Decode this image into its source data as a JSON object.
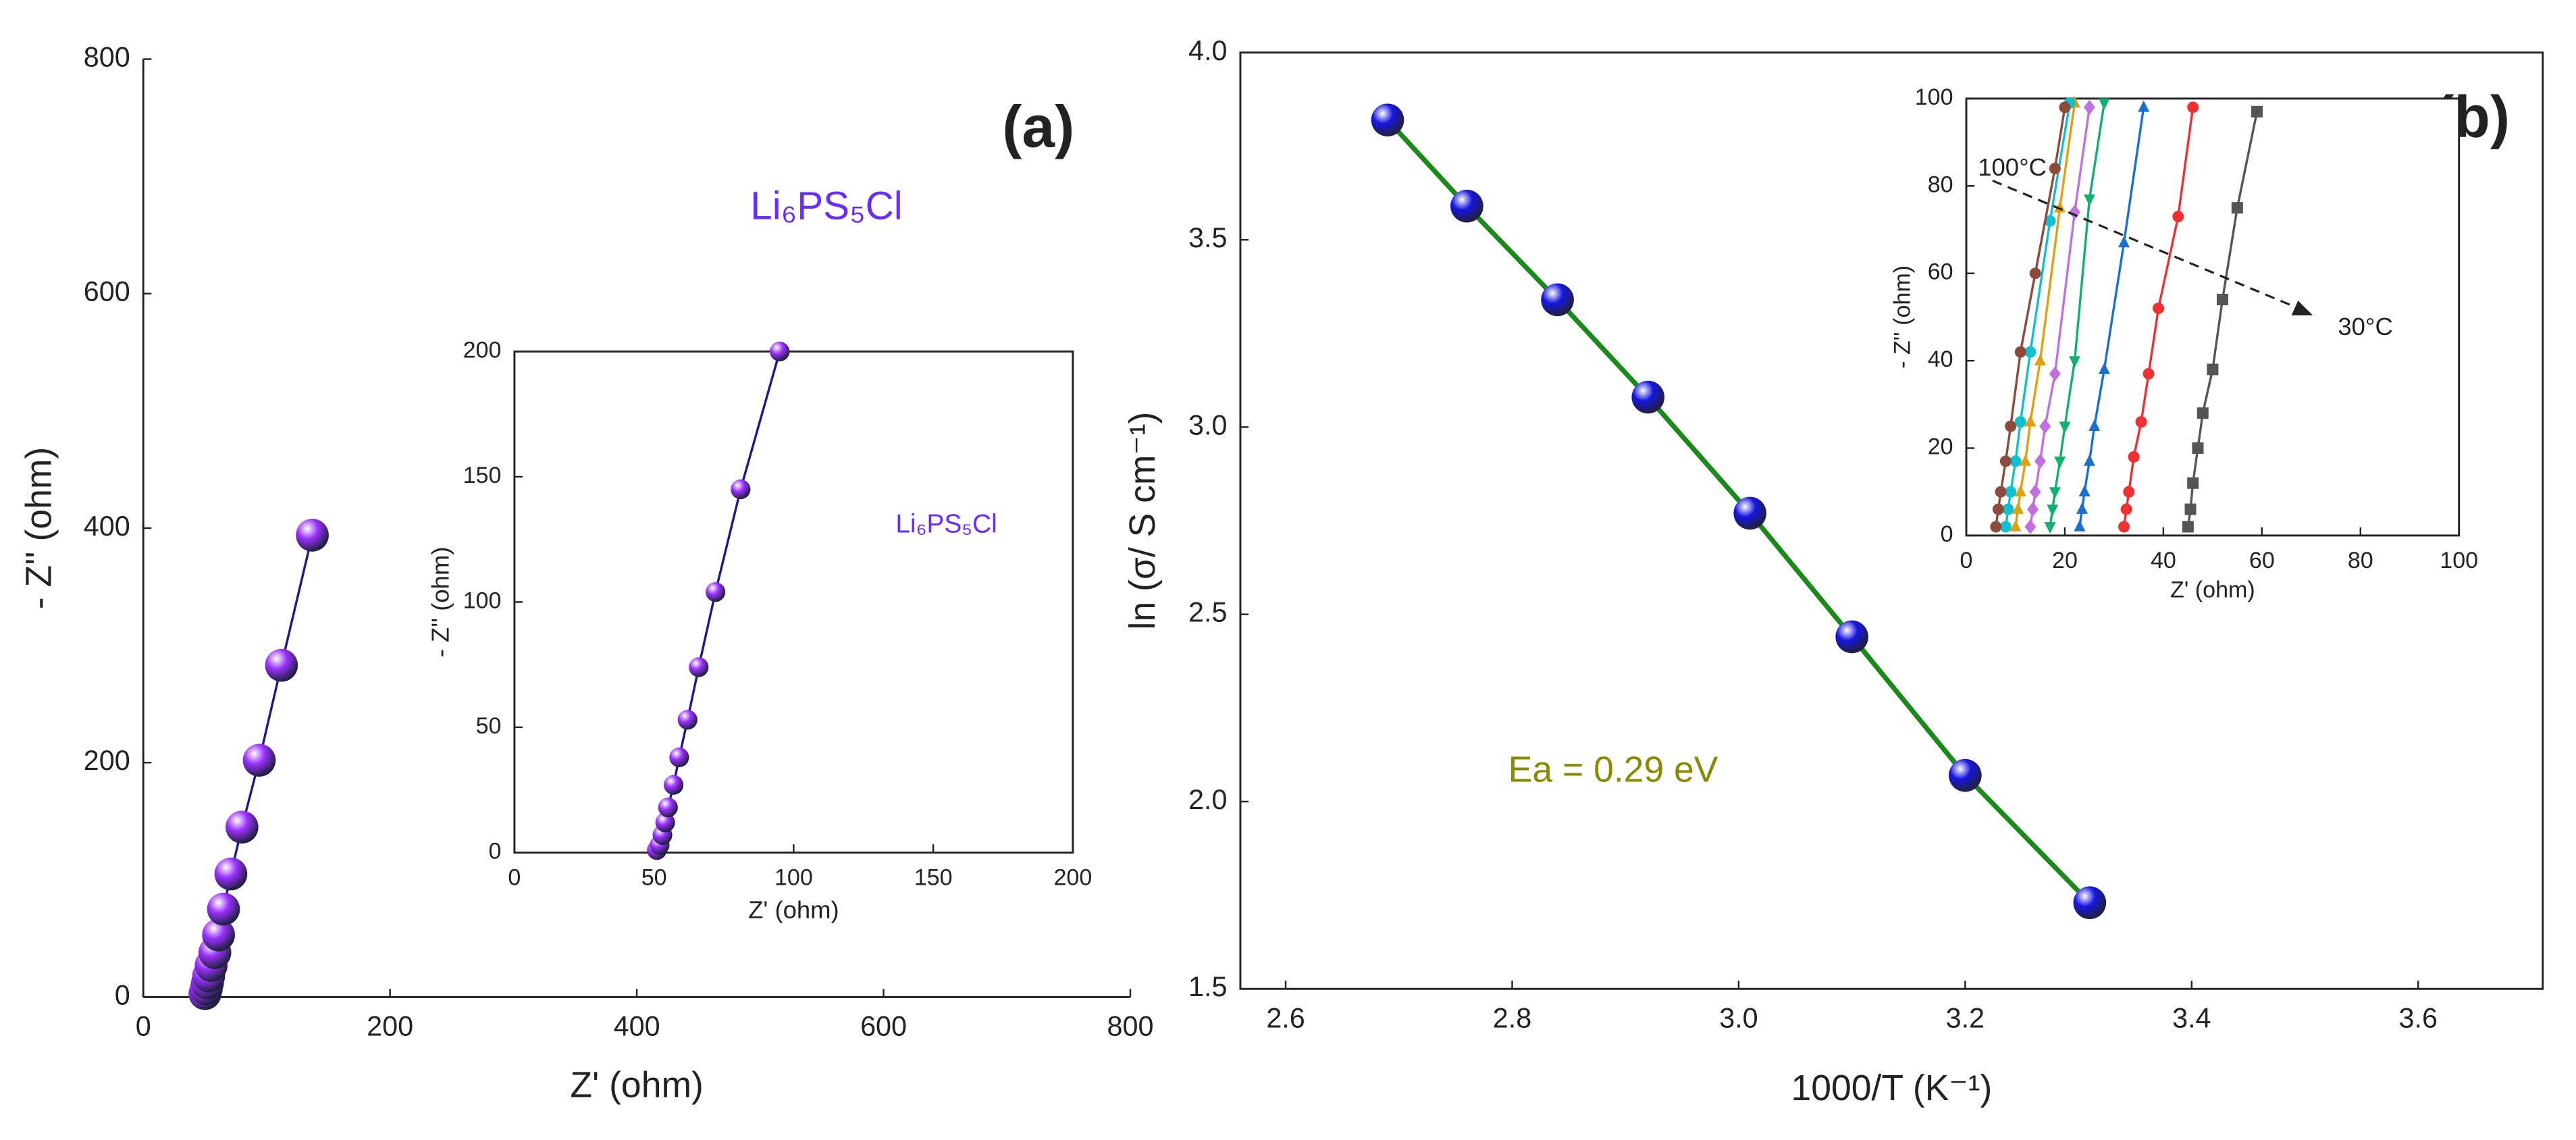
{
  "chart_data": [
    {
      "type": "scatter-line",
      "xlabel": "Z' (ohm)",
      "ylabel": "- Z'' (ohm)",
      "annotations": [
        "(a)",
        "Li₆PS₅Cl"
      ],
      "xlim": [
        0,
        800
      ],
      "ylim": [
        0,
        800
      ],
      "xticks": [
        0,
        200,
        400,
        600,
        800
      ],
      "yticks": [
        0,
        200,
        400,
        600,
        800
      ],
      "series": [
        {
          "color": "#9b30ff",
          "marker": "sphere",
          "x": [
            50,
            51,
            52,
            53,
            55,
            58,
            61,
            65,
            71,
            80,
            94,
            112,
            137
          ],
          "values": [
            3,
            7,
            12,
            18,
            27,
            38,
            53,
            75,
            105,
            145,
            202,
            283,
            394
          ]
        }
      ]
    },
    {
      "type": "scatter-line",
      "xlabel": "Z' (ohm)",
      "ylabel": "- Z'' (ohm)",
      "annotations": [
        "Li₆PS₅Cl"
      ],
      "xlim": [
        0,
        200
      ],
      "ylim": [
        0,
        200
      ],
      "xticks": [
        0,
        50,
        100,
        150,
        200
      ],
      "yticks": [
        0,
        50,
        100,
        150,
        200
      ],
      "series": [
        {
          "color": "#9b30ff",
          "marker": "sphere",
          "x": [
            51,
            52,
            53,
            54,
            55,
            57,
            59,
            62,
            66,
            72,
            81,
            95
          ],
          "values": [
            1,
            3,
            7,
            12,
            18,
            27,
            38,
            53,
            74,
            104,
            145,
            200
          ]
        }
      ]
    },
    {
      "type": "scatter-line",
      "xlabel": "1000/T (K⁻¹)",
      "ylabel": "ln (σ/ S cm⁻¹)",
      "annotations": [
        "(b)",
        "Ea = 0.29 eV"
      ],
      "xlim": [
        2.56,
        3.71
      ],
      "ylim": [
        1.5,
        4.0
      ],
      "xticks": [
        2.6,
        2.8,
        {
          "value": 3.0,
          "label": "3.0"
        },
        3.2,
        3.4,
        3.6
      ],
      "yticks": [
        1.5,
        {
          "value": 2.0,
          "label": "2.0"
        },
        2.5,
        {
          "value": 3.0,
          "label": "3.0"
        },
        3.5,
        {
          "value": 4.0,
          "label": "4.0"
        }
      ],
      "line_color": "#1a8a1a",
      "series": [
        {
          "color": "#1515e0",
          "marker": "sphere",
          "x": [
            2.69,
            2.76,
            2.84,
            2.92,
            3.01,
            3.1,
            3.2,
            3.31
          ],
          "values": [
            3.82,
            3.59,
            3.34,
            3.08,
            2.77,
            2.44,
            2.07,
            1.73
          ]
        }
      ]
    },
    {
      "type": "scatter-line",
      "xlabel": "Z' (ohm)",
      "ylabel": "- Z'' (ohm)",
      "annotations": [
        "100°C",
        "30°C"
      ],
      "xlim": [
        0,
        100
      ],
      "ylim": [
        0,
        100
      ],
      "xticks": [
        0,
        20,
        40,
        60,
        80,
        100
      ],
      "yticks": [
        0,
        20,
        40,
        60,
        80,
        100
      ],
      "series": [
        {
          "color": "#555555",
          "marker": "square",
          "x": [
            45,
            45.5,
            46,
            47,
            48,
            50,
            52,
            55,
            59
          ],
          "values": [
            2,
            6,
            12,
            20,
            28,
            38,
            54,
            75,
            97
          ]
        },
        {
          "color": "#f03030",
          "marker": "circle",
          "x": [
            32,
            32.5,
            33,
            34,
            35.5,
            37,
            39,
            43,
            46
          ],
          "values": [
            2,
            6,
            10,
            18,
            26,
            37,
            52,
            73,
            98
          ]
        },
        {
          "color": "#1a70d0",
          "marker": "triangle",
          "x": [
            23,
            23.5,
            24,
            25,
            26,
            28,
            32,
            36
          ],
          "values": [
            2,
            6,
            10,
            17,
            25,
            38,
            67,
            98
          ]
        },
        {
          "color": "#10b070",
          "marker": "tri-down",
          "x": [
            17,
            17.5,
            18,
            19,
            20,
            22,
            25,
            28
          ],
          "values": [
            2,
            6,
            10,
            17,
            25,
            40,
            77,
            99
          ]
        },
        {
          "color": "#c070e0",
          "marker": "diamond",
          "x": [
            13,
            13.5,
            14,
            15,
            16,
            18,
            22,
            25
          ],
          "values": [
            2,
            6,
            10,
            17,
            25,
            37,
            74,
            98
          ]
        },
        {
          "color": "#e0a010",
          "marker": "triangle",
          "x": [
            10,
            10.5,
            11,
            12,
            13,
            15,
            19,
            22
          ],
          "values": [
            2,
            6,
            10,
            17,
            26,
            40,
            75,
            99
          ]
        },
        {
          "color": "#10c0d0",
          "marker": "circle",
          "x": [
            8,
            8.5,
            9,
            10,
            11,
            13,
            17,
            21
          ],
          "values": [
            2,
            6,
            10,
            17,
            26,
            42,
            72,
            99
          ]
        },
        {
          "color": "#8b4a3a",
          "marker": "circle",
          "x": [
            6,
            6.5,
            7,
            8,
            9,
            11,
            14,
            18,
            20
          ],
          "values": [
            2,
            6,
            10,
            17,
            25,
            42,
            60,
            84,
            98
          ]
        }
      ]
    }
  ]
}
